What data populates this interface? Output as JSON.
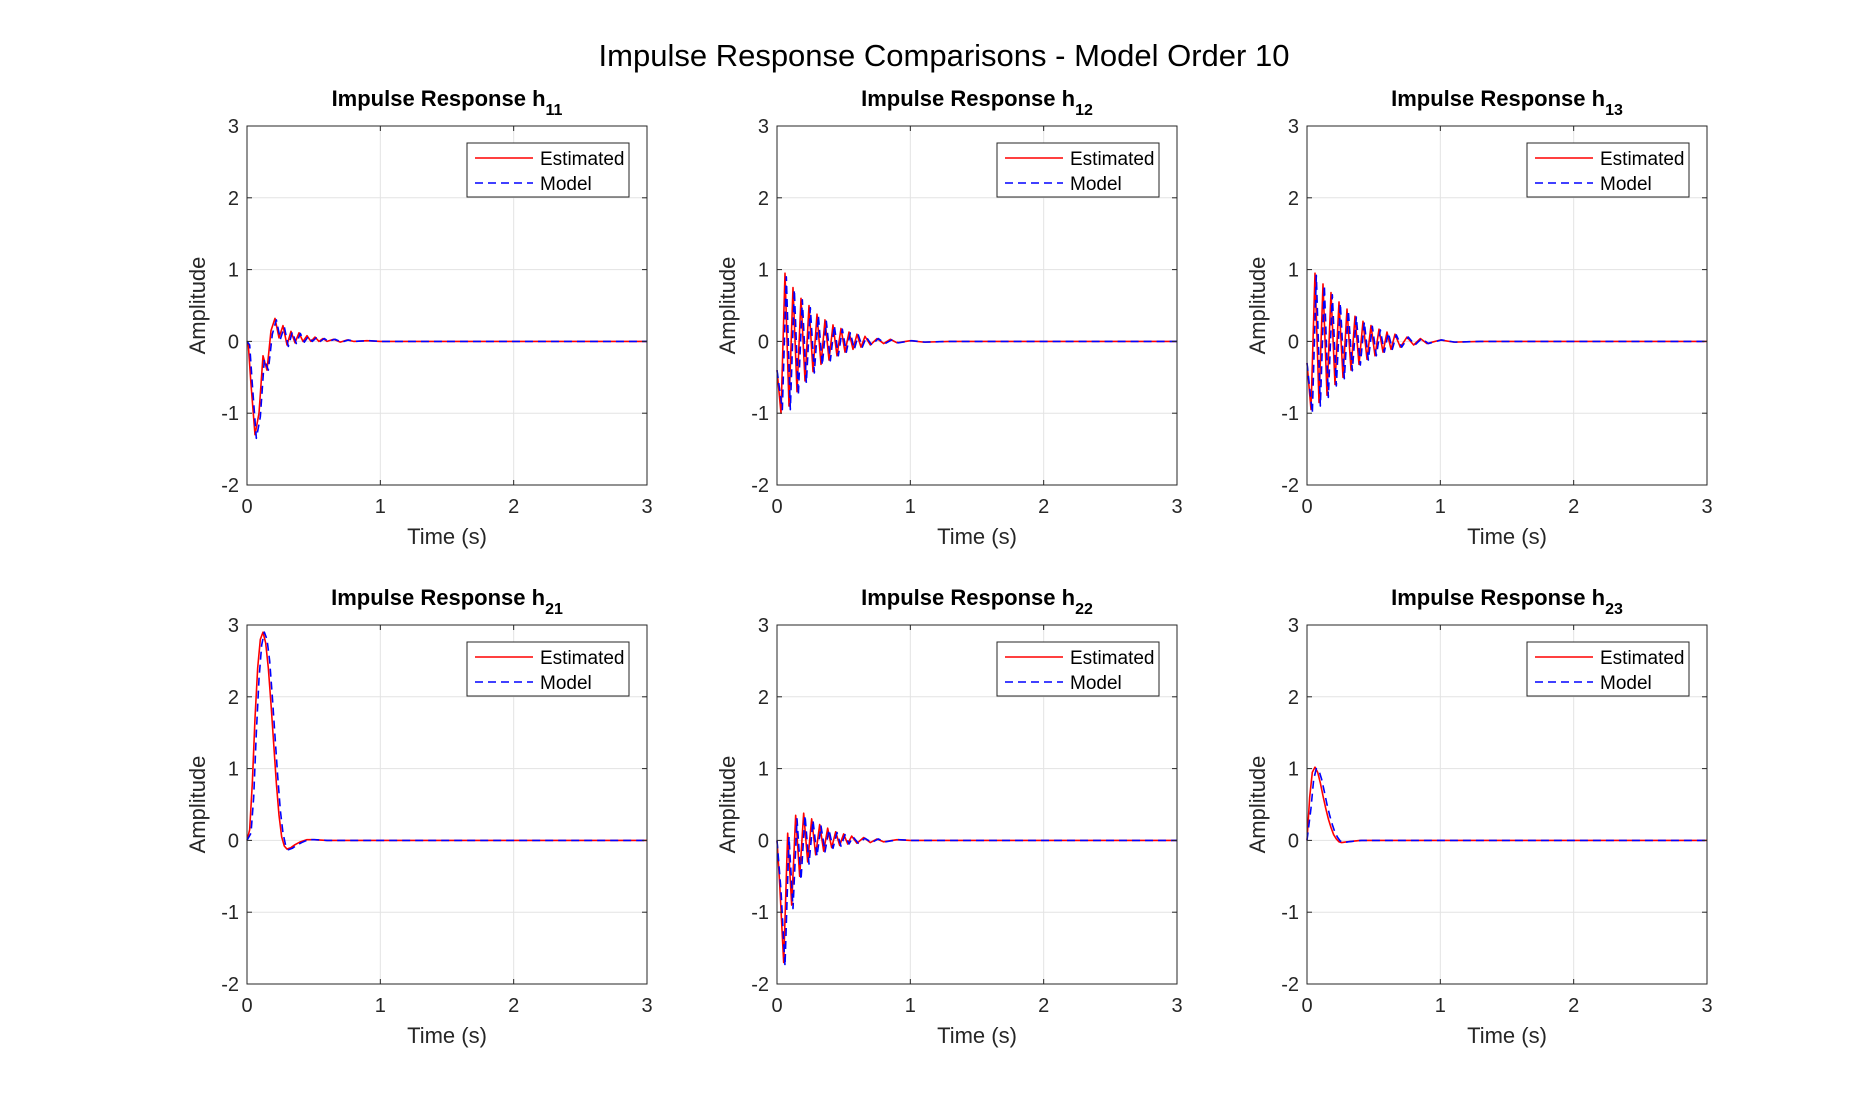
{
  "figure": {
    "title": "Impulse Response Comparisons - Model Order 10"
  },
  "chart_data": [
    {
      "type": "line",
      "title_main": "Impulse Response h",
      "title_sub": "11",
      "xlabel": "Time (s)",
      "ylabel": "Amplitude",
      "xlim": [
        0,
        3
      ],
      "ylim": [
        -2,
        3
      ],
      "xticks": [
        "0",
        "1",
        "2",
        "3"
      ],
      "yticks": [
        "-2",
        "-1",
        "0",
        "1",
        "2",
        "3"
      ],
      "grid": true,
      "legend_position": "top-right",
      "series": [
        {
          "name": "Estimated",
          "color": "#ff0000",
          "dash": "solid",
          "x": [
            0,
            0.01,
            0.03,
            0.06,
            0.09,
            0.12,
            0.15,
            0.18,
            0.21,
            0.24,
            0.27,
            0.3,
            0.33,
            0.36,
            0.39,
            0.42,
            0.45,
            0.48,
            0.51,
            0.54,
            0.57,
            0.6,
            0.65,
            0.7,
            0.75,
            0.8,
            0.9,
            1.0,
            1.2,
            1.5,
            2.0,
            2.5,
            3.0
          ],
          "values": [
            0,
            -0.05,
            -0.6,
            -1.3,
            -1.0,
            -0.2,
            -0.4,
            0.15,
            0.32,
            0.05,
            0.22,
            -0.05,
            0.14,
            -0.02,
            0.12,
            0.0,
            0.08,
            0.0,
            0.06,
            0.0,
            0.04,
            0.0,
            0.03,
            -0.01,
            0.02,
            0.0,
            0.01,
            0.0,
            0,
            0,
            0,
            0,
            0
          ]
        },
        {
          "name": "Model",
          "color": "#0000ff",
          "dash": "dashed",
          "x": [
            0,
            0.02,
            0.04,
            0.07,
            0.1,
            0.13,
            0.16,
            0.19,
            0.22,
            0.25,
            0.28,
            0.31,
            0.34,
            0.37,
            0.4,
            0.43,
            0.46,
            0.49,
            0.52,
            0.55,
            0.58,
            0.61,
            0.66,
            0.71,
            0.76,
            0.81,
            0.91,
            1.01,
            1.2,
            1.5,
            2.0,
            2.5,
            3.0
          ],
          "values": [
            0,
            -0.05,
            -0.6,
            -1.35,
            -1.05,
            -0.25,
            -0.4,
            0.1,
            0.3,
            0.03,
            0.2,
            -0.07,
            0.13,
            -0.03,
            0.11,
            -0.01,
            0.07,
            0.0,
            0.05,
            0.0,
            0.04,
            0.0,
            0.03,
            -0.01,
            0.02,
            0.0,
            0.01,
            0.0,
            0,
            0,
            0,
            0,
            0
          ]
        }
      ]
    },
    {
      "type": "line",
      "title_main": "Impulse Response h",
      "title_sub": "12",
      "xlabel": "Time (s)",
      "ylabel": "Amplitude",
      "xlim": [
        0,
        3
      ],
      "ylim": [
        -2,
        3
      ],
      "xticks": [
        "0",
        "1",
        "2",
        "3"
      ],
      "yticks": [
        "-2",
        "-1",
        "0",
        "1",
        "2",
        "3"
      ],
      "grid": true,
      "legend_position": "top-right",
      "series": [
        {
          "name": "Estimated",
          "color": "#ff0000",
          "dash": "solid",
          "x": [
            0,
            0.03,
            0.06,
            0.09,
            0.12,
            0.15,
            0.18,
            0.21,
            0.24,
            0.27,
            0.3,
            0.33,
            0.36,
            0.39,
            0.42,
            0.45,
            0.48,
            0.51,
            0.54,
            0.57,
            0.6,
            0.63,
            0.66,
            0.7,
            0.75,
            0.8,
            0.85,
            0.9,
            1.0,
            1.1,
            1.3,
            1.6,
            2.0,
            3.0
          ],
          "values": [
            -0.4,
            -1.0,
            0.95,
            -0.9,
            0.75,
            -0.7,
            0.6,
            -0.55,
            0.5,
            -0.42,
            0.38,
            -0.32,
            0.3,
            -0.26,
            0.23,
            -0.2,
            0.18,
            -0.15,
            0.13,
            -0.11,
            0.1,
            -0.08,
            0.07,
            -0.05,
            0.04,
            -0.03,
            0.03,
            -0.02,
            0.01,
            -0.01,
            0,
            0,
            0,
            0
          ]
        },
        {
          "name": "Model",
          "color": "#0000ff",
          "dash": "dashed",
          "x": [
            0,
            0.04,
            0.07,
            0.1,
            0.13,
            0.16,
            0.19,
            0.22,
            0.25,
            0.28,
            0.31,
            0.34,
            0.37,
            0.4,
            0.43,
            0.46,
            0.49,
            0.52,
            0.55,
            0.58,
            0.61,
            0.64,
            0.67,
            0.71,
            0.76,
            0.81,
            0.86,
            0.91,
            1.01,
            1.11,
            1.3,
            1.6,
            2.0,
            3.0
          ],
          "values": [
            -0.4,
            -0.95,
            0.9,
            -0.95,
            0.72,
            -0.75,
            0.58,
            -0.58,
            0.47,
            -0.44,
            0.36,
            -0.33,
            0.28,
            -0.27,
            0.22,
            -0.2,
            0.17,
            -0.15,
            0.12,
            -0.11,
            0.09,
            -0.08,
            0.06,
            -0.05,
            0.04,
            -0.03,
            0.02,
            -0.02,
            0.01,
            -0.01,
            0,
            0,
            0,
            0
          ]
        }
      ]
    },
    {
      "type": "line",
      "title_main": "Impulse Response h",
      "title_sub": "13",
      "xlabel": "Time (s)",
      "ylabel": "Amplitude",
      "xlim": [
        0,
        3
      ],
      "ylim": [
        -2,
        3
      ],
      "xticks": [
        "0",
        "1",
        "2",
        "3"
      ],
      "yticks": [
        "-2",
        "-1",
        "0",
        "1",
        "2",
        "3"
      ],
      "grid": true,
      "legend_position": "top-right",
      "series": [
        {
          "name": "Estimated",
          "color": "#ff0000",
          "dash": "solid",
          "x": [
            0,
            0.03,
            0.06,
            0.09,
            0.12,
            0.15,
            0.18,
            0.21,
            0.24,
            0.27,
            0.3,
            0.33,
            0.36,
            0.39,
            0.42,
            0.45,
            0.48,
            0.51,
            0.54,
            0.57,
            0.6,
            0.63,
            0.66,
            0.7,
            0.75,
            0.8,
            0.85,
            0.9,
            1.0,
            1.1,
            1.3,
            1.6,
            2.0,
            3.0
          ],
          "values": [
            -0.3,
            -0.95,
            0.95,
            -0.85,
            0.8,
            -0.75,
            0.68,
            -0.6,
            0.55,
            -0.5,
            0.45,
            -0.4,
            0.35,
            -0.32,
            0.28,
            -0.25,
            0.22,
            -0.2,
            0.17,
            -0.15,
            0.13,
            -0.11,
            0.1,
            -0.08,
            0.06,
            -0.05,
            0.04,
            -0.03,
            0.02,
            -0.01,
            0,
            0,
            0,
            0
          ]
        },
        {
          "name": "Model",
          "color": "#0000ff",
          "dash": "dashed",
          "x": [
            0,
            0.04,
            0.07,
            0.1,
            0.13,
            0.16,
            0.19,
            0.22,
            0.25,
            0.28,
            0.31,
            0.34,
            0.37,
            0.4,
            0.43,
            0.46,
            0.49,
            0.52,
            0.55,
            0.58,
            0.61,
            0.64,
            0.67,
            0.71,
            0.76,
            0.81,
            0.86,
            0.91,
            1.01,
            1.11,
            1.3,
            1.6,
            2.0,
            3.0
          ],
          "values": [
            -0.3,
            -1.0,
            0.92,
            -0.9,
            0.78,
            -0.78,
            0.65,
            -0.62,
            0.53,
            -0.52,
            0.43,
            -0.41,
            0.34,
            -0.33,
            0.27,
            -0.26,
            0.21,
            -0.2,
            0.16,
            -0.15,
            0.12,
            -0.11,
            0.09,
            -0.08,
            0.06,
            -0.05,
            0.04,
            -0.03,
            0.02,
            -0.01,
            0,
            0,
            0,
            0
          ]
        }
      ]
    },
    {
      "type": "line",
      "title_main": "Impulse Response h",
      "title_sub": "21",
      "xlabel": "Time (s)",
      "ylabel": "Amplitude",
      "xlim": [
        0,
        3
      ],
      "ylim": [
        -2,
        3
      ],
      "xticks": [
        "0",
        "1",
        "2",
        "3"
      ],
      "yticks": [
        "-2",
        "-1",
        "0",
        "1",
        "2",
        "3"
      ],
      "grid": true,
      "legend_position": "top-right",
      "series": [
        {
          "name": "Estimated",
          "color": "#ff0000",
          "dash": "solid",
          "x": [
            0,
            0.02,
            0.04,
            0.06,
            0.08,
            0.1,
            0.12,
            0.14,
            0.16,
            0.18,
            0.2,
            0.22,
            0.24,
            0.26,
            0.28,
            0.3,
            0.33,
            0.36,
            0.4,
            0.45,
            0.5,
            0.6,
            1.0,
            2.0,
            3.0
          ],
          "values": [
            0,
            0.15,
            0.8,
            1.7,
            2.4,
            2.8,
            2.9,
            2.75,
            2.4,
            1.9,
            1.35,
            0.8,
            0.35,
            0.05,
            -0.08,
            -0.12,
            -0.1,
            -0.06,
            -0.02,
            0.01,
            0.01,
            0,
            0,
            0,
            0
          ]
        },
        {
          "name": "Model",
          "color": "#0000ff",
          "dash": "dashed",
          "x": [
            0,
            0.03,
            0.05,
            0.07,
            0.09,
            0.11,
            0.13,
            0.15,
            0.17,
            0.19,
            0.21,
            0.23,
            0.25,
            0.27,
            0.29,
            0.31,
            0.34,
            0.37,
            0.41,
            0.46,
            0.51,
            0.6,
            1.0,
            2.0,
            3.0
          ],
          "values": [
            0,
            0.1,
            0.6,
            1.5,
            2.25,
            2.72,
            2.9,
            2.8,
            2.5,
            2.0,
            1.45,
            0.9,
            0.42,
            0.1,
            -0.07,
            -0.13,
            -0.11,
            -0.07,
            -0.03,
            0.01,
            0.01,
            0,
            0,
            0,
            0
          ]
        }
      ]
    },
    {
      "type": "line",
      "title_main": "Impulse Response h",
      "title_sub": "22",
      "xlabel": "Time (s)",
      "ylabel": "Amplitude",
      "xlim": [
        0,
        3
      ],
      "ylim": [
        -2,
        3
      ],
      "xticks": [
        "0",
        "1",
        "2",
        "3"
      ],
      "yticks": [
        "-2",
        "-1",
        "0",
        "1",
        "2",
        "3"
      ],
      "grid": true,
      "legend_position": "top-right",
      "series": [
        {
          "name": "Estimated",
          "color": "#ff0000",
          "dash": "solid",
          "x": [
            0,
            0.02,
            0.05,
            0.08,
            0.11,
            0.14,
            0.17,
            0.2,
            0.23,
            0.26,
            0.29,
            0.32,
            0.35,
            0.38,
            0.41,
            0.44,
            0.47,
            0.5,
            0.53,
            0.56,
            0.6,
            0.65,
            0.7,
            0.75,
            0.8,
            0.9,
            1.0,
            1.2,
            1.5,
            2.0,
            3.0
          ],
          "values": [
            0,
            -0.6,
            -1.7,
            0.1,
            -0.9,
            0.35,
            -0.5,
            0.38,
            -0.3,
            0.3,
            -0.2,
            0.22,
            -0.15,
            0.17,
            -0.1,
            0.12,
            -0.07,
            0.09,
            -0.05,
            0.06,
            -0.04,
            0.04,
            -0.03,
            0.02,
            -0.02,
            0.01,
            0,
            0,
            0,
            0,
            0
          ]
        },
        {
          "name": "Model",
          "color": "#0000ff",
          "dash": "dashed",
          "x": [
            0,
            0.03,
            0.06,
            0.09,
            0.12,
            0.15,
            0.18,
            0.21,
            0.24,
            0.27,
            0.3,
            0.33,
            0.36,
            0.39,
            0.42,
            0.45,
            0.48,
            0.51,
            0.54,
            0.57,
            0.61,
            0.66,
            0.71,
            0.76,
            0.81,
            0.91,
            1.01,
            1.2,
            1.5,
            2.0,
            3.0
          ],
          "values": [
            0,
            -0.7,
            -1.75,
            0.05,
            -0.95,
            0.3,
            -0.55,
            0.35,
            -0.33,
            0.28,
            -0.22,
            0.2,
            -0.16,
            0.15,
            -0.11,
            0.11,
            -0.08,
            0.08,
            -0.05,
            0.05,
            -0.04,
            0.03,
            -0.03,
            0.02,
            -0.02,
            0.01,
            0,
            0,
            0,
            0,
            0
          ]
        }
      ]
    },
    {
      "type": "line",
      "title_main": "Impulse Response h",
      "title_sub": "23",
      "xlabel": "Time (s)",
      "ylabel": "Amplitude",
      "xlim": [
        0,
        3
      ],
      "ylim": [
        -2,
        3
      ],
      "xticks": [
        "0",
        "1",
        "2",
        "3"
      ],
      "yticks": [
        "-2",
        "-1",
        "0",
        "1",
        "2",
        "3"
      ],
      "grid": true,
      "legend_position": "top-right",
      "series": [
        {
          "name": "Estimated",
          "color": "#ff0000",
          "dash": "solid",
          "x": [
            0,
            0.02,
            0.04,
            0.06,
            0.08,
            0.1,
            0.12,
            0.14,
            0.16,
            0.18,
            0.2,
            0.22,
            0.24,
            0.26,
            0.3,
            0.4,
            1.0,
            2.0,
            3.0
          ],
          "values": [
            0,
            0.6,
            0.95,
            1.02,
            0.95,
            0.8,
            0.62,
            0.45,
            0.3,
            0.18,
            0.08,
            0.02,
            -0.02,
            -0.03,
            -0.02,
            0,
            0,
            0,
            0
          ]
        },
        {
          "name": "Model",
          "color": "#0000ff",
          "dash": "dashed",
          "x": [
            0,
            0.03,
            0.05,
            0.07,
            0.09,
            0.11,
            0.13,
            0.15,
            0.17,
            0.19,
            0.21,
            0.23,
            0.25,
            0.27,
            0.31,
            0.41,
            1.0,
            2.0,
            3.0
          ],
          "values": [
            0,
            0.45,
            0.85,
            1.0,
            0.97,
            0.85,
            0.68,
            0.5,
            0.35,
            0.22,
            0.11,
            0.04,
            -0.01,
            -0.03,
            -0.02,
            0,
            0,
            0,
            0
          ]
        }
      ]
    }
  ]
}
